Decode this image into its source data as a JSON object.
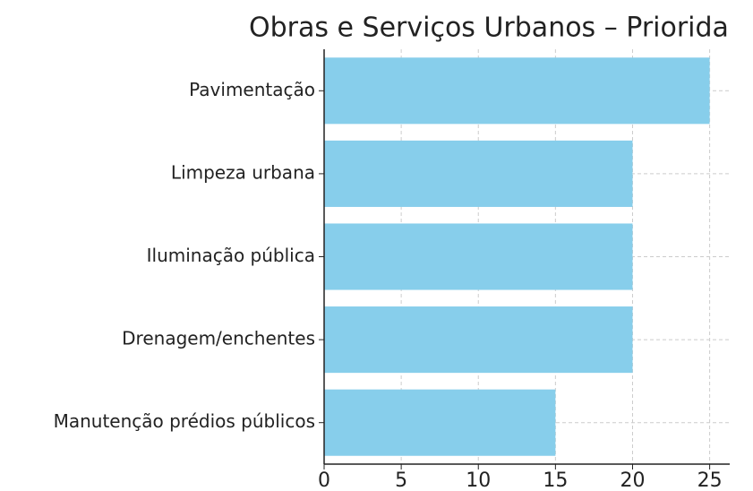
{
  "chart_data": {
    "type": "barh",
    "title": "Obras e Serviços Urbanos – Priorida",
    "categories": [
      "Pavimentação",
      "Limpeza urbana",
      "Iluminação pública",
      "Drenagem/enchentes",
      "Manutenção prédios públicos"
    ],
    "values": [
      25,
      20,
      20,
      20,
      15
    ],
    "color": "#87ceeb",
    "xlim": [
      0,
      26.3
    ],
    "xticks": [
      0,
      5,
      10,
      15,
      20,
      25
    ],
    "grid": true
  }
}
